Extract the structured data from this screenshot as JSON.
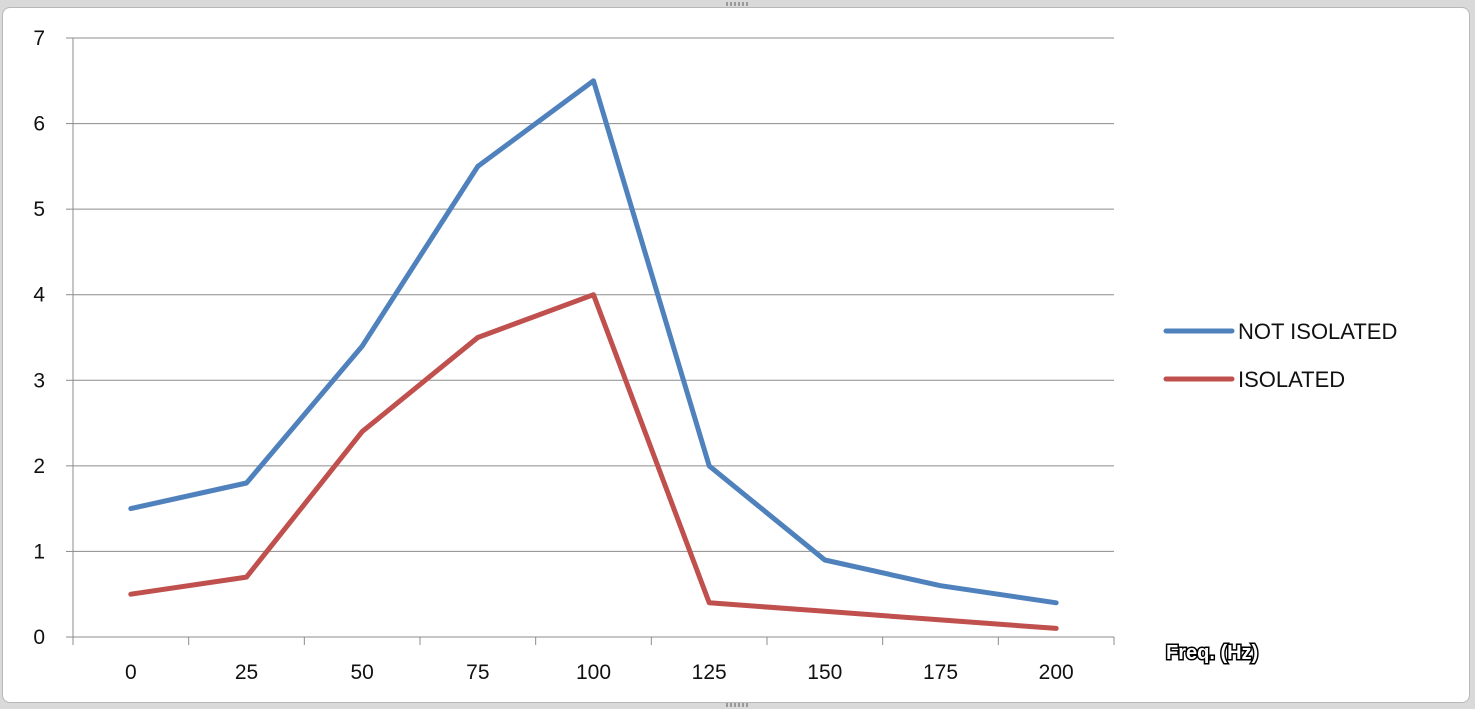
{
  "chart_data": {
    "type": "line",
    "title": "",
    "xlabel": "Freq. (Hz)",
    "ylabel": "",
    "categories": [
      "0",
      "25",
      "50",
      "75",
      "100",
      "125",
      "150",
      "175",
      "200"
    ],
    "ylim": [
      0,
      7
    ],
    "yticks": [
      "0",
      "1",
      "2",
      "3",
      "4",
      "5",
      "6",
      "7"
    ],
    "grid": true,
    "legend_position": "right",
    "series": [
      {
        "name": "NOT ISOLATED",
        "color": "#4f81bd",
        "values": [
          1.5,
          1.8,
          3.4,
          5.5,
          6.5,
          2.0,
          0.9,
          0.6,
          0.4
        ]
      },
      {
        "name": "ISOLATED",
        "color": "#c0504d",
        "values": [
          0.5,
          0.7,
          2.4,
          3.5,
          4.0,
          0.4,
          0.3,
          0.2,
          0.1
        ]
      }
    ]
  }
}
